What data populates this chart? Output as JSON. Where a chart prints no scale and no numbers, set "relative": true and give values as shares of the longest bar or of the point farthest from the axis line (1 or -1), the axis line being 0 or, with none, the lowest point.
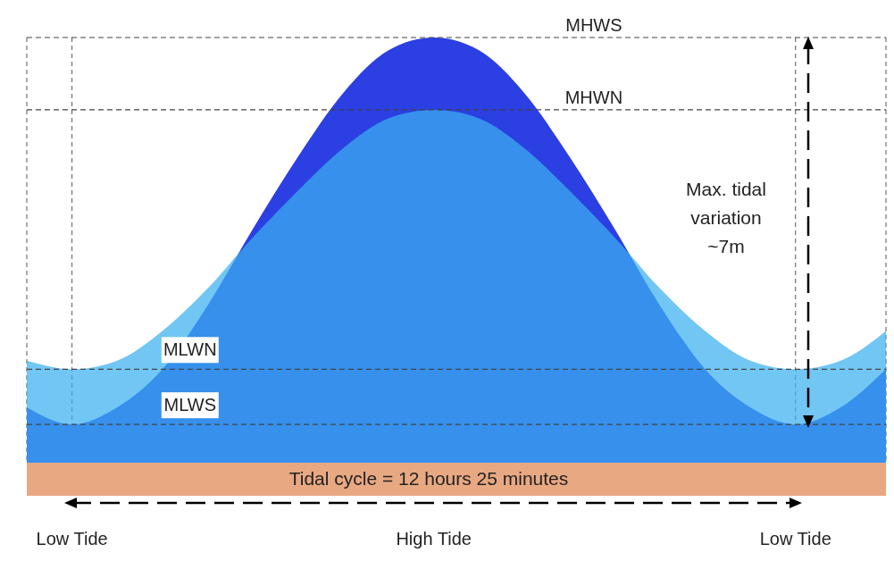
{
  "chart_data": {
    "type": "area",
    "relative": true,
    "categories": [
      null,
      "Low Tide",
      null,
      null,
      null,
      null,
      null,
      null,
      null,
      "High Tide",
      null,
      null,
      null,
      null,
      null,
      null,
      null,
      "Low Tide",
      null,
      null
    ],
    "series": [
      {
        "color": "#2b3fe2",
        "values": [
          0.13,
          0.09,
          0.13,
          0.22,
          0.37,
          0.55,
          0.72,
          0.87,
          0.97,
          1,
          0.97,
          0.87,
          0.72,
          0.55,
          0.37,
          0.22,
          0.13,
          0.09,
          0.13,
          0.22
        ]
      },
      {
        "color": "#3ab0f0",
        "values": [
          0.24,
          0.22,
          0.24,
          0.31,
          0.41,
          0.53,
          0.64,
          0.74,
          0.81,
          0.83,
          0.81,
          0.74,
          0.64,
          0.53,
          0.41,
          0.31,
          0.24,
          0.22,
          0.24,
          0.31
        ]
      }
    ],
    "grid": "x",
    "ref_lines": [
      {
        "axis": "y",
        "value": 1,
        "label": "MHWS",
        "line_style": "dashed"
      },
      {
        "axis": "y",
        "value": 0.83,
        "label": "MHWN",
        "line_style": "dashed"
      },
      {
        "axis": "y",
        "value": 0.22,
        "label": "MLWN",
        "line_style": "dashed"
      },
      {
        "axis": "y",
        "value": 0.09,
        "label": "MLWS",
        "line_style": "dashed"
      }
    ],
    "annotations": [
      "Max. tidal variation ~7m",
      "Tidal cycle = 12 hours 25 minutes"
    ]
  }
}
